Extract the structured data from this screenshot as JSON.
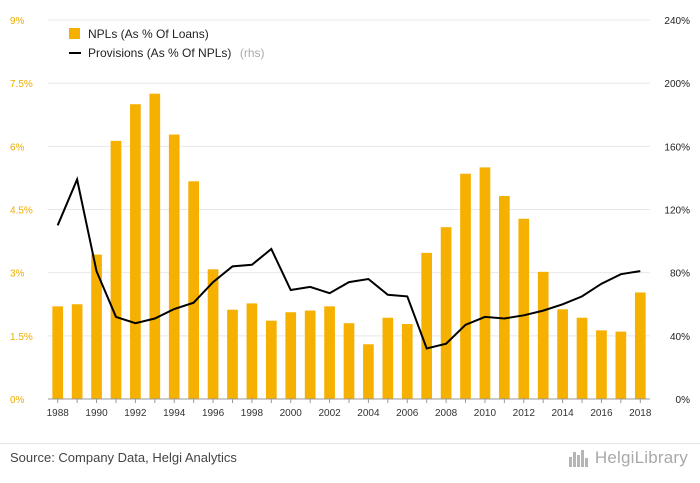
{
  "chart_data": {
    "type": "bar",
    "years": [
      1988,
      1989,
      1990,
      1991,
      1992,
      1993,
      1994,
      1995,
      1996,
      1997,
      1998,
      1999,
      2000,
      2001,
      2002,
      2003,
      2004,
      2005,
      2006,
      2007,
      2008,
      2009,
      2010,
      2011,
      2012,
      2013,
      2014,
      2015,
      2016,
      2017,
      2018
    ],
    "x_tick_labels": [
      "1988",
      "1990",
      "1992",
      "1994",
      "1996",
      "1998",
      "2000",
      "2002",
      "2004",
      "2006",
      "2008",
      "2010",
      "2012",
      "2014",
      "2016",
      "2018"
    ],
    "series": [
      {
        "name": "NPLs (As % Of Loans)",
        "type": "bar",
        "axis": "left",
        "color": "#F5B000",
        "values": [
          2.2,
          2.25,
          3.43,
          6.13,
          7.0,
          7.25,
          6.28,
          5.17,
          3.08,
          2.12,
          2.27,
          1.86,
          2.06,
          2.1,
          2.2,
          1.8,
          1.3,
          1.93,
          1.78,
          3.47,
          4.08,
          5.35,
          5.5,
          4.82,
          4.28,
          3.02,
          2.13,
          1.93,
          1.63,
          1.6,
          2.53
        ]
      },
      {
        "name": "Provisions (As % Of NPLs)",
        "name_suffix": "(rhs)",
        "type": "line",
        "axis": "right",
        "color": "#000000",
        "values": [
          110,
          139,
          81,
          52,
          48,
          51,
          57,
          61,
          74,
          84,
          85,
          95,
          69,
          71,
          67,
          74,
          76,
          66,
          65,
          32,
          35,
          47,
          52,
          51,
          53,
          56,
          60,
          65,
          73,
          79,
          81
        ]
      }
    ],
    "y_left": {
      "min": 0,
      "max": 9,
      "tick_values": [
        0,
        1.5,
        3,
        4.5,
        6,
        7.5,
        9
      ],
      "tick_labels": [
        "0%",
        "1.5%",
        "3%",
        "4.5%",
        "6%",
        "7.5%",
        "9%"
      ]
    },
    "y_right": {
      "min": 0,
      "max": 240,
      "tick_values": [
        0,
        40,
        80,
        120,
        160,
        200,
        240
      ],
      "tick_labels": [
        "0%",
        "40%",
        "80%",
        "120%",
        "160%",
        "200%",
        "240%"
      ]
    },
    "grid": true,
    "legend_position": "top-left"
  },
  "footer": {
    "source": "Source: Company Data, Helgi Analytics",
    "logo_text": "HelgiLibrary",
    "logo_icon": "city-skyline-icon"
  }
}
